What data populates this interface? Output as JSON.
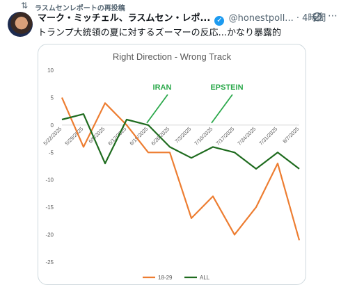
{
  "repost": {
    "icon": "repost-icon",
    "text": "ラスムセンレポートの再投稿"
  },
  "post": {
    "display_name": "マーク・ミッチェル、ラスムセン・レポ...",
    "verified_icon": "verified-badge-icon",
    "handle": "@honestpoll...",
    "timestamp": "· 4時間",
    "text": "トランプ大統領の夏に対するズーマーの反応...かなり暴露的"
  },
  "chart_data": {
    "type": "line",
    "title": "Right Direction - Wrong Track",
    "categories": [
      "5/22/2025",
      "5/29/2025",
      "6/5/2025",
      "6/12/2025",
      "6/19/2025",
      "6/26/2025",
      "7/3/2025",
      "7/10/2025",
      "7/17/2025",
      "7/24/2025",
      "7/31/2025",
      "8/7/2025"
    ],
    "series": [
      {
        "name": "18-29",
        "color": "#ed7d31",
        "values": [
          5,
          -4,
          4,
          0,
          -5,
          -5,
          -17,
          -13,
          -20,
          -15,
          -7,
          -21
        ]
      },
      {
        "name": "ALL",
        "color": "#1e6b1e",
        "values": [
          1,
          2,
          -7,
          1,
          0,
          -4,
          -6,
          -4,
          -5,
          -8,
          -5,
          -8
        ]
      }
    ],
    "ylim": [
      -25,
      10
    ],
    "yticks": [
      10,
      5,
      0,
      -5,
      -10,
      -15,
      -20,
      -25
    ],
    "grid": false,
    "legend": "bottom",
    "annotations": [
      {
        "text": "IRAN",
        "color": "#2aa84a",
        "x": "6/19/2025",
        "y": 0
      },
      {
        "text": "EPSTEIN",
        "color": "#2aa84a",
        "x": "7/10/2025",
        "y": 0
      }
    ]
  }
}
